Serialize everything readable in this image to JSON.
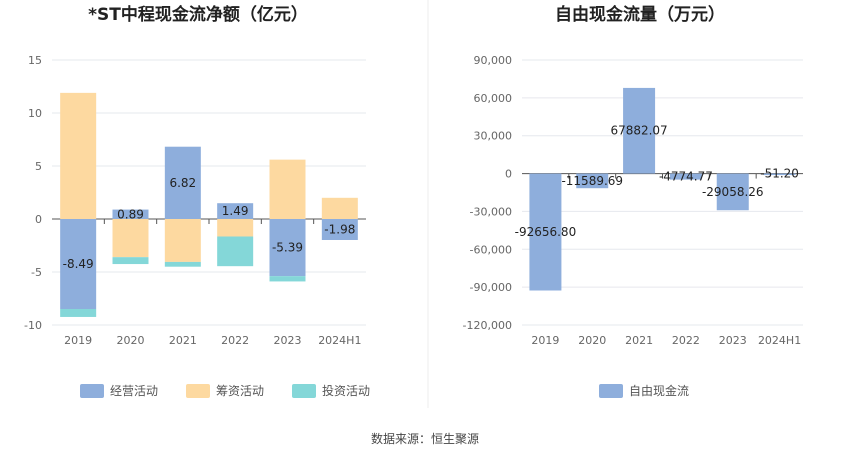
{
  "source_text": "数据来源：恒生聚源",
  "chart_data": [
    {
      "type": "bar",
      "stacked": true,
      "title": "*ST中程现金流净额（亿元）",
      "categories": [
        "2019",
        "2020",
        "2021",
        "2022",
        "2023",
        "2024H1"
      ],
      "series": [
        {
          "name": "经营活动",
          "color": "#8eaedc",
          "values": [
            -8.49,
            0.89,
            6.82,
            1.49,
            -5.39,
            -1.98
          ]
        },
        {
          "name": "筹资活动",
          "color": "#fdd9a0",
          "values": [
            11.9,
            -3.6,
            -4.05,
            -1.65,
            5.6,
            2.0
          ]
        },
        {
          "name": "投资活动",
          "color": "#84d7d8",
          "values": [
            -0.75,
            -0.65,
            -0.45,
            -2.8,
            -0.5,
            0
          ]
        }
      ],
      "data_labels": [
        "-8.49",
        "0.89",
        "6.82",
        "1.49",
        "-5.39",
        "-1.98"
      ],
      "y_ticks": [
        "15",
        "10",
        "5",
        "0",
        "-5",
        "-10"
      ],
      "ylim": [
        -10,
        15
      ],
      "grid": true,
      "legend": "bottom"
    },
    {
      "type": "bar",
      "title": "自由现金流量（万元）",
      "categories": [
        "2019",
        "2020",
        "2021",
        "2022",
        "2023",
        "2024H1"
      ],
      "series": [
        {
          "name": "自由现金流",
          "color": "#8eaedc",
          "values": [
            -92656.8,
            -11589.69,
            67882.07,
            -4774.77,
            -29058.26,
            -51.2
          ]
        }
      ],
      "data_labels": [
        "-92656.80",
        "-11589.69",
        "67882.07",
        "-4774.77",
        "-29058.26",
        "-51.20"
      ],
      "y_ticks": [
        "90,000",
        "60,000",
        "30,000",
        "0",
        "-30,000",
        "-60,000",
        "-90,000",
        "-120,000"
      ],
      "ylim": [
        -120000,
        90000
      ],
      "grid": true,
      "legend": "bottom"
    }
  ]
}
